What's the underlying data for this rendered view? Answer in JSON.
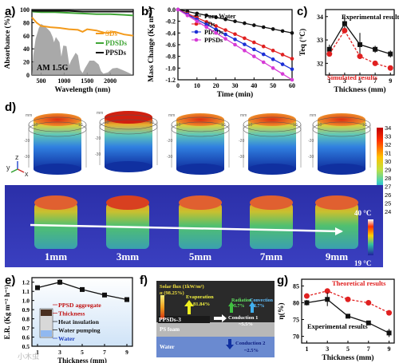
{
  "figure": {
    "panel_letters": [
      "a)",
      "b)",
      "c)",
      "d)",
      "e)",
      "f)",
      "g)"
    ],
    "watermark": "小木虫"
  },
  "chart_data": [
    {
      "panel": "a",
      "type": "line",
      "xlabel": "Wavelength (nm)",
      "ylabel": "Absorbance (%)",
      "xticks": [
        500,
        1000,
        1500,
        2000
      ],
      "yticks": [
        0,
        20,
        40,
        60,
        80,
        100
      ],
      "xlim": [
        300,
        2500
      ],
      "ylim": [
        0,
        100
      ],
      "annotation": "AM 1.5G",
      "legend_position": "right",
      "series": [
        {
          "name": "SDs",
          "color": "#f39a1b",
          "x": [
            300,
            400,
            500,
            700,
            900,
            1100,
            1300,
            1400,
            1500,
            1700,
            1900,
            2100,
            2300,
            2500
          ],
          "y": [
            88,
            80,
            75,
            73,
            72,
            70,
            69,
            66,
            70,
            68,
            64,
            66,
            62,
            60
          ]
        },
        {
          "name": "PDSDs",
          "color": "#3fa535",
          "x": [
            300,
            500,
            800,
            1100,
            1400,
            1700,
            2000,
            2300,
            2500
          ],
          "y": [
            97,
            96,
            96,
            95,
            94,
            93,
            93,
            92,
            91
          ]
        },
        {
          "name": "PPSDs",
          "color": "#111111",
          "x": [
            300,
            500,
            800,
            1100,
            1400,
            1700,
            2000,
            2300,
            2500
          ],
          "y": [
            98,
            98,
            98,
            98,
            97,
            97,
            97,
            97,
            97
          ]
        }
      ]
    },
    {
      "panel": "b",
      "type": "line",
      "xlabel": "Time (min)",
      "ylabel": "Mass Change (Kg m⁻²)",
      "xticks": [
        0,
        10,
        20,
        30,
        40,
        50,
        60
      ],
      "yticks": [
        0.0,
        -0.2,
        -0.4,
        -0.6,
        -0.8,
        -1.0,
        -1.2
      ],
      "xlim": [
        0,
        60
      ],
      "ylim": [
        -1.2,
        0.0
      ],
      "legend_position": "top-right",
      "series": [
        {
          "name": "Pure Water",
          "color": "#111111",
          "x": [
            0,
            5,
            10,
            15,
            20,
            25,
            30,
            35,
            40,
            45,
            50,
            55,
            60
          ],
          "y": [
            0,
            -0.033,
            -0.067,
            -0.1,
            -0.133,
            -0.167,
            -0.2,
            -0.233,
            -0.267,
            -0.3,
            -0.333,
            -0.367,
            -0.4
          ]
        },
        {
          "name": "SDs",
          "color": "#e02020",
          "x": [
            0,
            5,
            10,
            15,
            20,
            25,
            30,
            35,
            40,
            45,
            50,
            55,
            60
          ],
          "y": [
            0,
            -0.07,
            -0.14,
            -0.21,
            -0.28,
            -0.35,
            -0.42,
            -0.49,
            -0.56,
            -0.63,
            -0.7,
            -0.77,
            -0.84
          ]
        },
        {
          "name": "PDSDs",
          "color": "#1b2fd6",
          "x": [
            0,
            5,
            10,
            15,
            20,
            25,
            30,
            35,
            40,
            45,
            50,
            55,
            60
          ],
          "y": [
            0,
            -0.085,
            -0.17,
            -0.255,
            -0.34,
            -0.425,
            -0.51,
            -0.595,
            -0.68,
            -0.765,
            -0.85,
            -0.935,
            -1.02
          ]
        },
        {
          "name": "PPSDs",
          "color": "#d63ad6",
          "x": [
            0,
            5,
            10,
            15,
            20,
            25,
            30,
            35,
            40,
            45,
            50,
            55,
            60
          ],
          "y": [
            0,
            -0.1,
            -0.2,
            -0.3,
            -0.4,
            -0.5,
            -0.6,
            -0.7,
            -0.8,
            -0.9,
            -1.0,
            -1.1,
            -1.2
          ]
        }
      ]
    },
    {
      "panel": "c",
      "type": "line",
      "xlabel": "Thickness (mm)",
      "ylabel": "Teq (°C)",
      "xticks": [
        1,
        3,
        5,
        7,
        9
      ],
      "yticks": [
        32,
        33,
        34
      ],
      "xlim": [
        0.5,
        9.5
      ],
      "ylim": [
        31.5,
        34.3
      ],
      "series": [
        {
          "name": "Experimental results",
          "color": "#111111",
          "x": [
            1,
            3,
            5,
            7,
            9
          ],
          "y": [
            32.6,
            33.7,
            32.8,
            32.6,
            32.4
          ],
          "err": [
            0.2,
            0.35,
            0.5,
            0.15,
            0.15
          ]
        },
        {
          "name": "Simulated results",
          "color": "#e02020",
          "x": [
            1,
            3,
            5,
            7,
            9
          ],
          "y": [
            32.4,
            33.4,
            32.3,
            32.0,
            31.8
          ]
        }
      ]
    },
    {
      "panel": "d",
      "type": "heatmap",
      "colorbar_ticks": [
        34,
        33,
        32,
        31,
        30,
        29,
        28,
        27,
        26,
        25,
        24
      ],
      "axis_letters": [
        "y",
        "z",
        "x"
      ],
      "ir_thicknesses": [
        "1mm",
        "3mm",
        "5mm",
        "7mm",
        "9mm"
      ],
      "ir_scale_max": "40 °C",
      "ir_scale_min": "19 °C",
      "sim_axis_ticks": [
        "-10",
        "0",
        "10",
        "-20",
        "-30",
        "-40"
      ],
      "sim_axis_unit": "mm"
    },
    {
      "panel": "e",
      "type": "line",
      "xlabel": "Thickness (mm)",
      "ylabel": "E.R. (Kg m⁻² h⁻¹)",
      "xticks": [
        1,
        3,
        5,
        7,
        9
      ],
      "yticks": [
        0.5,
        0.6,
        0.7,
        0.8,
        0.9,
        1.0,
        1.1,
        1.2
      ],
      "xlim": [
        0.5,
        9.5
      ],
      "ylim": [
        0.5,
        1.25
      ],
      "series": [
        {
          "name": "E.R.",
          "color": "#111111",
          "x": [
            1,
            3,
            5,
            7,
            9
          ],
          "y": [
            1.14,
            1.2,
            1.12,
            1.06,
            1.01
          ],
          "err": [
            0.01,
            0.03,
            0.01,
            0.01,
            0.01
          ]
        }
      ],
      "inset_labels": [
        "PPSD aggregate",
        "Thickness",
        "Heat insulation",
        "Water pumping",
        "Water"
      ]
    },
    {
      "panel": "f",
      "type": "table",
      "labels": {
        "solar_flux": "Solar flux (1kW/m²)",
        "alpha": "α (98.25%)",
        "evaporation": "Evaporation",
        "evaporation_pct": "81.84%",
        "radiation": "Radiation",
        "radiation_pct": "5.7%",
        "convection": "Convection",
        "convection_pct": "2.7%",
        "material": "PPSDs-3",
        "conduction1": "Conduction 1",
        "conduction1_pct": "~5.5%",
        "foam": "PS foam",
        "water": "Water",
        "conduction2": "Conduction 2",
        "conduction2_pct": "~2.5%"
      }
    },
    {
      "panel": "g",
      "type": "line",
      "xlabel": "Thickness (mm)",
      "ylabel": "η(%)",
      "xticks": [
        1,
        3,
        5,
        7,
        9
      ],
      "yticks": [
        70,
        75,
        80,
        85
      ],
      "xlim": [
        0.5,
        9.5
      ],
      "ylim": [
        68,
        87
      ],
      "series": [
        {
          "name": "Theoretical results",
          "color": "#e02020",
          "x": [
            1,
            3,
            5,
            7,
            9
          ],
          "y": [
            82,
            83.5,
            81,
            80,
            77
          ]
        },
        {
          "name": "Experimental results",
          "color": "#111111",
          "x": [
            1,
            3,
            5,
            7,
            9
          ],
          "y": [
            80,
            81,
            76,
            74,
            71
          ],
          "err": [
            0.8,
            2.0,
            0.5,
            0.5,
            1.2
          ]
        }
      ]
    }
  ]
}
